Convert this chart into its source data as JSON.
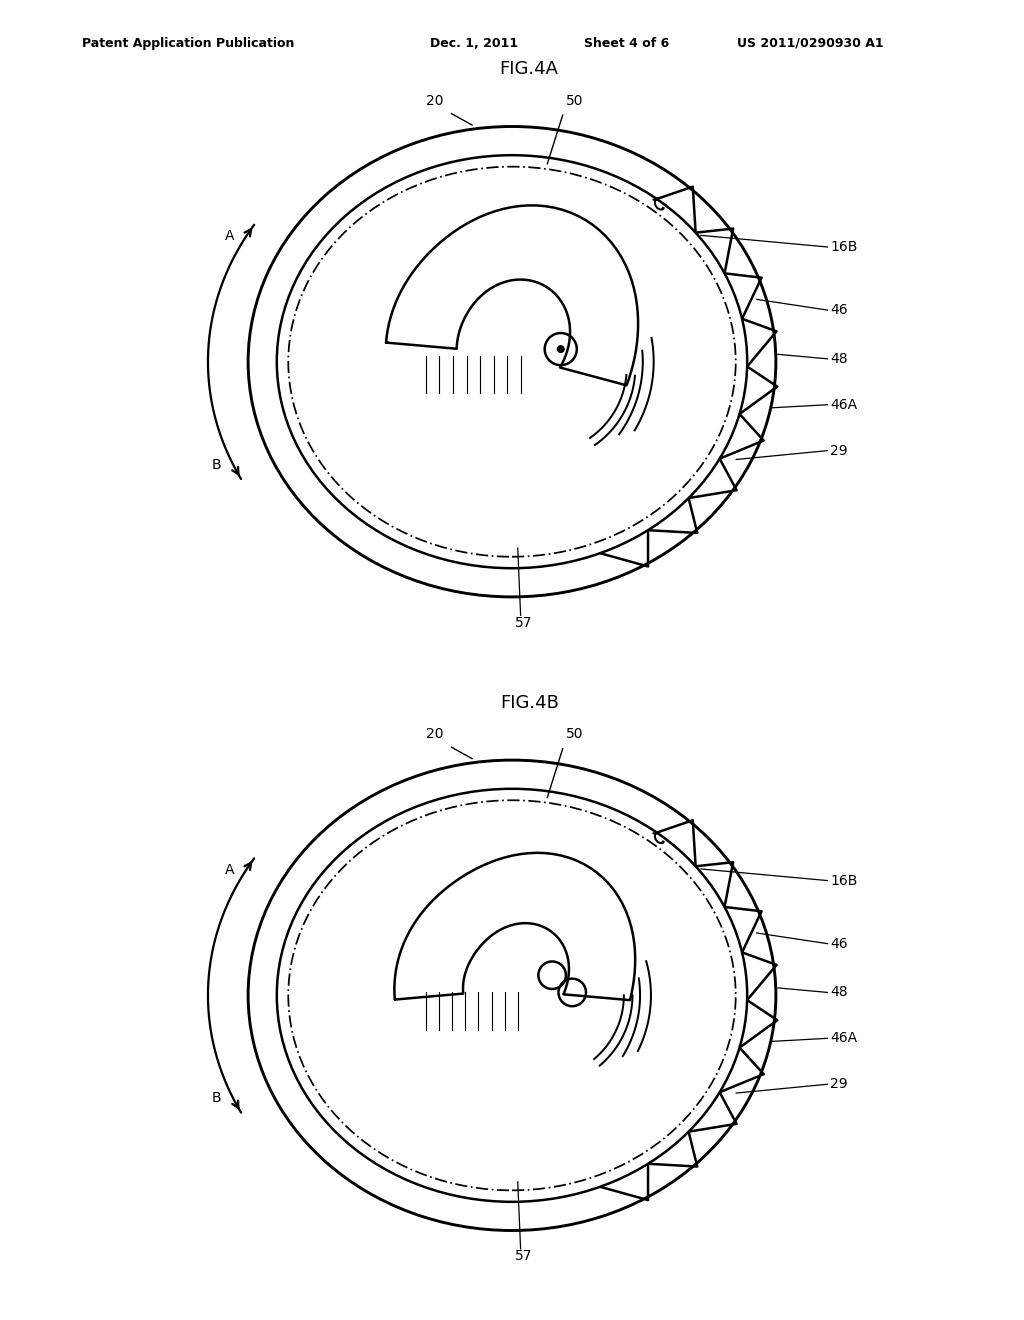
{
  "background_color": "#ffffff",
  "header_text": "Patent Application Publication",
  "header_date": "Dec. 1, 2011",
  "header_sheet": "Sheet 4 of 6",
  "header_patent": "US 2011/0290930 A1",
  "fig4a_title": "FIG.4A",
  "fig4b_title": "FIG.4B",
  "line_color": "#000000",
  "line_width": 1.8,
  "label_fontsize": 10,
  "title_fontsize": 13,
  "header_fontsize": 9
}
